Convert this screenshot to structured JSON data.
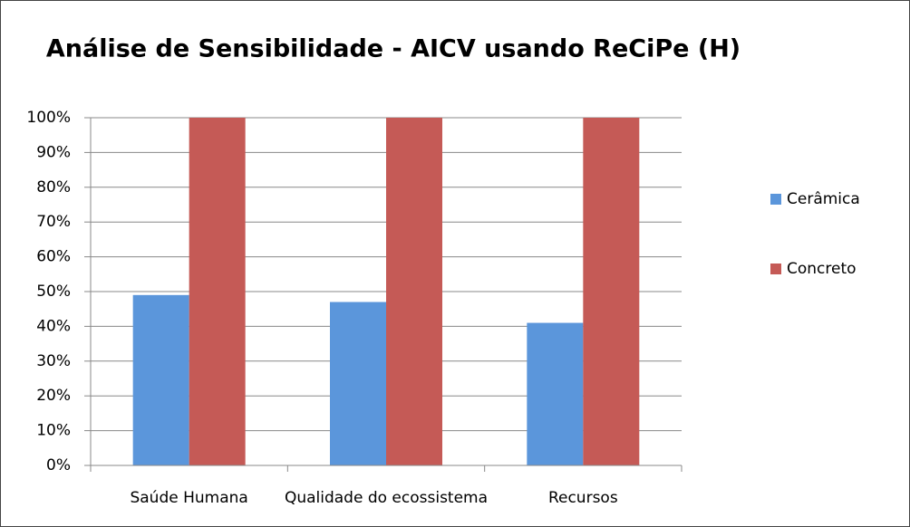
{
  "chart_data": {
    "type": "bar",
    "title": "Análise de Sensibilidade - AICV usando ReCiPe (H)",
    "categories": [
      "Saúde Humana",
      "Qualidade do ecossistema",
      "Recursos"
    ],
    "series": [
      {
        "name": "Cerâmica",
        "color": "#5b96db",
        "values": [
          49,
          47,
          41
        ]
      },
      {
        "name": "Concreto",
        "color": "#c55a56",
        "values": [
          100,
          100,
          100
        ]
      }
    ],
    "ylim": [
      0,
      100
    ],
    "yticks": [
      {
        "value": 0,
        "label": "0%"
      },
      {
        "value": 10,
        "label": "10%"
      },
      {
        "value": 20,
        "label": "20%"
      },
      {
        "value": 30,
        "label": "30%"
      },
      {
        "value": 40,
        "label": "40%"
      },
      {
        "value": 50,
        "label": "50%"
      },
      {
        "value": 60,
        "label": "60%"
      },
      {
        "value": 70,
        "label": "70%"
      },
      {
        "value": 80,
        "label": "80%"
      },
      {
        "value": 90,
        "label": "90%"
      },
      {
        "value": 100,
        "label": "100%"
      }
    ],
    "grid": true,
    "legend": "right"
  }
}
